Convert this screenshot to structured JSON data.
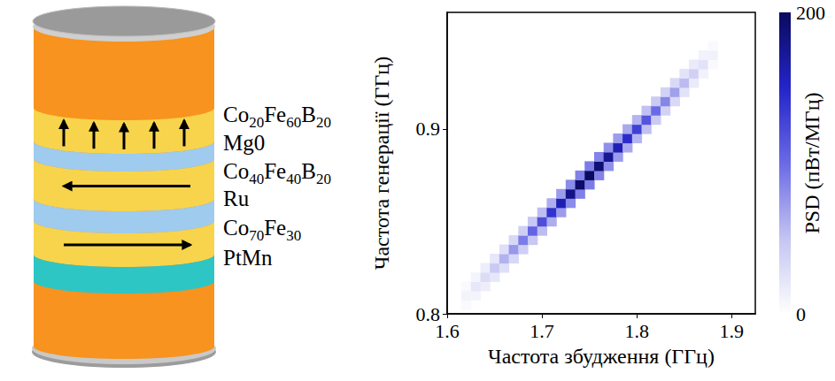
{
  "diagram": {
    "layers": [
      {
        "label": "Co20Fe60B20",
        "color": "#f7d44c",
        "arrow": "up"
      },
      {
        "label": "Mg0",
        "color": "#9fcbee"
      },
      {
        "label": "Co40Fe40B20",
        "color": "#f7d44c",
        "arrow": "left"
      },
      {
        "label": "Ru",
        "color": "#9fcbee"
      },
      {
        "label": "Co70Fe30",
        "color": "#f7d44c",
        "arrow": "right"
      },
      {
        "label": "PtMn",
        "color": "#2ec5c5"
      }
    ]
  },
  "chart_data": {
    "type": "heatmap",
    "x_label": "Частота збудження (ГГц)",
    "y_label": "Частота генерації (ГГц)",
    "xlim": [
      1.6,
      1.925
    ],
    "xticks": [
      1.6,
      1.7,
      1.8,
      1.9
    ],
    "ylim": [
      0.8,
      0.963
    ],
    "yticks": [
      0.8,
      0.9
    ],
    "cells": [
      [
        1.62,
        0.805,
        5
      ],
      [
        1.62,
        0.81,
        10
      ],
      [
        1.62,
        0.815,
        5
      ],
      [
        1.63,
        0.81,
        9
      ],
      [
        1.63,
        0.815,
        20
      ],
      [
        1.63,
        0.82,
        9
      ],
      [
        1.64,
        0.815,
        14
      ],
      [
        1.64,
        0.82,
        30
      ],
      [
        1.64,
        0.825,
        14
      ],
      [
        1.65,
        0.82,
        20
      ],
      [
        1.65,
        0.825,
        45
      ],
      [
        1.65,
        0.83,
        20
      ],
      [
        1.66,
        0.825,
        27
      ],
      [
        1.66,
        0.83,
        60
      ],
      [
        1.66,
        0.835,
        27
      ],
      [
        1.67,
        0.83,
        34
      ],
      [
        1.67,
        0.835,
        75
      ],
      [
        1.67,
        0.84,
        34
      ],
      [
        1.68,
        0.835,
        41
      ],
      [
        1.68,
        0.84,
        90
      ],
      [
        1.68,
        0.845,
        41
      ],
      [
        1.69,
        0.84,
        47
      ],
      [
        1.69,
        0.845,
        105
      ],
      [
        1.69,
        0.85,
        47
      ],
      [
        1.7,
        0.845,
        54
      ],
      [
        1.7,
        0.85,
        120
      ],
      [
        1.7,
        0.855,
        54
      ],
      [
        1.71,
        0.85,
        63
      ],
      [
        1.71,
        0.855,
        140
      ],
      [
        1.71,
        0.86,
        63
      ],
      [
        1.72,
        0.855,
        72
      ],
      [
        1.72,
        0.86,
        160
      ],
      [
        1.72,
        0.865,
        72
      ],
      [
        1.73,
        0.86,
        81
      ],
      [
        1.73,
        0.865,
        180
      ],
      [
        1.73,
        0.87,
        81
      ],
      [
        1.74,
        0.865,
        88
      ],
      [
        1.74,
        0.87,
        195
      ],
      [
        1.74,
        0.875,
        88
      ],
      [
        1.75,
        0.87,
        90
      ],
      [
        1.75,
        0.875,
        200
      ],
      [
        1.75,
        0.88,
        90
      ],
      [
        1.76,
        0.875,
        86
      ],
      [
        1.76,
        0.88,
        190
      ],
      [
        1.76,
        0.885,
        86
      ],
      [
        1.77,
        0.88,
        79
      ],
      [
        1.77,
        0.885,
        175
      ],
      [
        1.77,
        0.89,
        79
      ],
      [
        1.78,
        0.885,
        72
      ],
      [
        1.78,
        0.89,
        160
      ],
      [
        1.78,
        0.895,
        72
      ],
      [
        1.79,
        0.89,
        65
      ],
      [
        1.79,
        0.895,
        145
      ],
      [
        1.79,
        0.9,
        65
      ],
      [
        1.8,
        0.895,
        59
      ],
      [
        1.8,
        0.9,
        130
      ],
      [
        1.8,
        0.905,
        59
      ],
      [
        1.81,
        0.9,
        52
      ],
      [
        1.81,
        0.905,
        115
      ],
      [
        1.81,
        0.91,
        52
      ],
      [
        1.82,
        0.905,
        45
      ],
      [
        1.82,
        0.91,
        100
      ],
      [
        1.82,
        0.915,
        45
      ],
      [
        1.83,
        0.91,
        38
      ],
      [
        1.83,
        0.915,
        85
      ],
      [
        1.83,
        0.92,
        38
      ],
      [
        1.84,
        0.915,
        32
      ],
      [
        1.84,
        0.92,
        70
      ],
      [
        1.84,
        0.925,
        32
      ],
      [
        1.85,
        0.92,
        25
      ],
      [
        1.85,
        0.925,
        55
      ],
      [
        1.85,
        0.93,
        25
      ],
      [
        1.86,
        0.925,
        18
      ],
      [
        1.86,
        0.93,
        40
      ],
      [
        1.86,
        0.935,
        18
      ],
      [
        1.87,
        0.93,
        11
      ],
      [
        1.87,
        0.935,
        25
      ],
      [
        1.87,
        0.94,
        11
      ],
      [
        1.88,
        0.935,
        5
      ],
      [
        1.88,
        0.94,
        12
      ],
      [
        1.88,
        0.945,
        5
      ]
    ],
    "colorbar": {
      "label": "PSD (пВт/МГц)",
      "range": [
        0,
        200
      ],
      "ticks": [
        0,
        200
      ]
    }
  }
}
